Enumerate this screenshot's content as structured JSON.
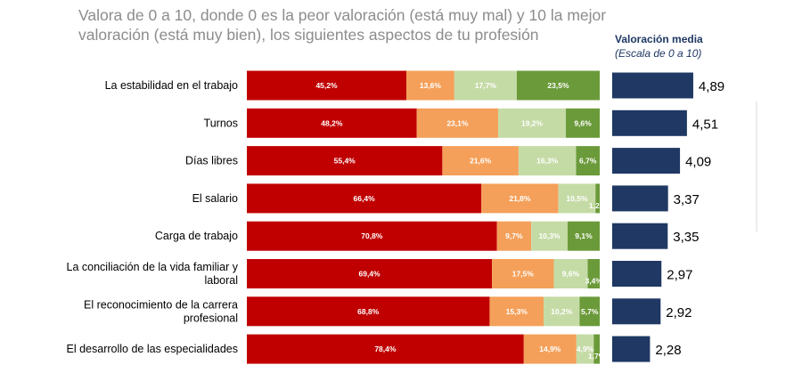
{
  "title": "Valora de 0 a 10, donde 0 es la peor valoración (está muy mal) y 10 la mejor valoración (está muy bien), los siguientes aspectos de tu profesión",
  "avg_header": {
    "label": "Valoración media",
    "scale": "(Escala de 0 a 10)"
  },
  "colors": {
    "seg1": "#c00000",
    "seg2": "#f4a05a",
    "seg3": "#c5dba6",
    "seg4": "#6b9a3a",
    "avg_bar": "#1f3864"
  },
  "chart_data": {
    "type": "bar",
    "orientation": "horizontal-stacked-100",
    "categories": [
      [
        "La estabilidad en el trabajo"
      ],
      [
        "Turnos"
      ],
      [
        "Días libres"
      ],
      [
        "El salario"
      ],
      [
        "Carga de trabajo"
      ],
      [
        "La conciliación de la vida familiar y",
        "laboral"
      ],
      [
        "El reconocimiento de la carrera",
        "profesional"
      ],
      [
        "El desarrollo de las especialidades"
      ]
    ],
    "series": [
      {
        "values": [
          45.2,
          48.2,
          55.4,
          66.4,
          70.8,
          69.4,
          68.8,
          78.4
        ],
        "labels": [
          "45,2%",
          "48,2%",
          "55,4%",
          "66,4%",
          "70,8%",
          "69,4%",
          "68,8%",
          "78,4%"
        ]
      },
      {
        "values": [
          13.6,
          23.1,
          21.6,
          21.8,
          9.7,
          17.5,
          15.3,
          14.9
        ],
        "labels": [
          "13,6%",
          "23,1%",
          "21,6%",
          "21,8%",
          "9,7%",
          "17,5%",
          "15,3%",
          "14,9%"
        ]
      },
      {
        "values": [
          17.7,
          19.2,
          16.3,
          10.5,
          10.3,
          9.6,
          10.2,
          4.9
        ],
        "labels": [
          "17,7%",
          "19,2%",
          "16,3%",
          "10,5%",
          "10,3%",
          "9,6%",
          "10,2%",
          "4,9%"
        ]
      },
      {
        "values": [
          23.5,
          9.6,
          6.7,
          1.2,
          9.1,
          3.4,
          5.7,
          1.7
        ],
        "labels": [
          "23,5%",
          "9,6%",
          "6,7%",
          "1,2%",
          "9,1%",
          "3,4%",
          "5,7%",
          "1,7%"
        ]
      }
    ],
    "averages": {
      "values": [
        4.89,
        4.51,
        4.09,
        3.37,
        3.35,
        2.97,
        2.92,
        2.28
      ],
      "labels": [
        "4,89",
        "4,51",
        "4,09",
        "3,37",
        "3,35",
        "2,97",
        "2,92",
        "2,28"
      ]
    }
  }
}
